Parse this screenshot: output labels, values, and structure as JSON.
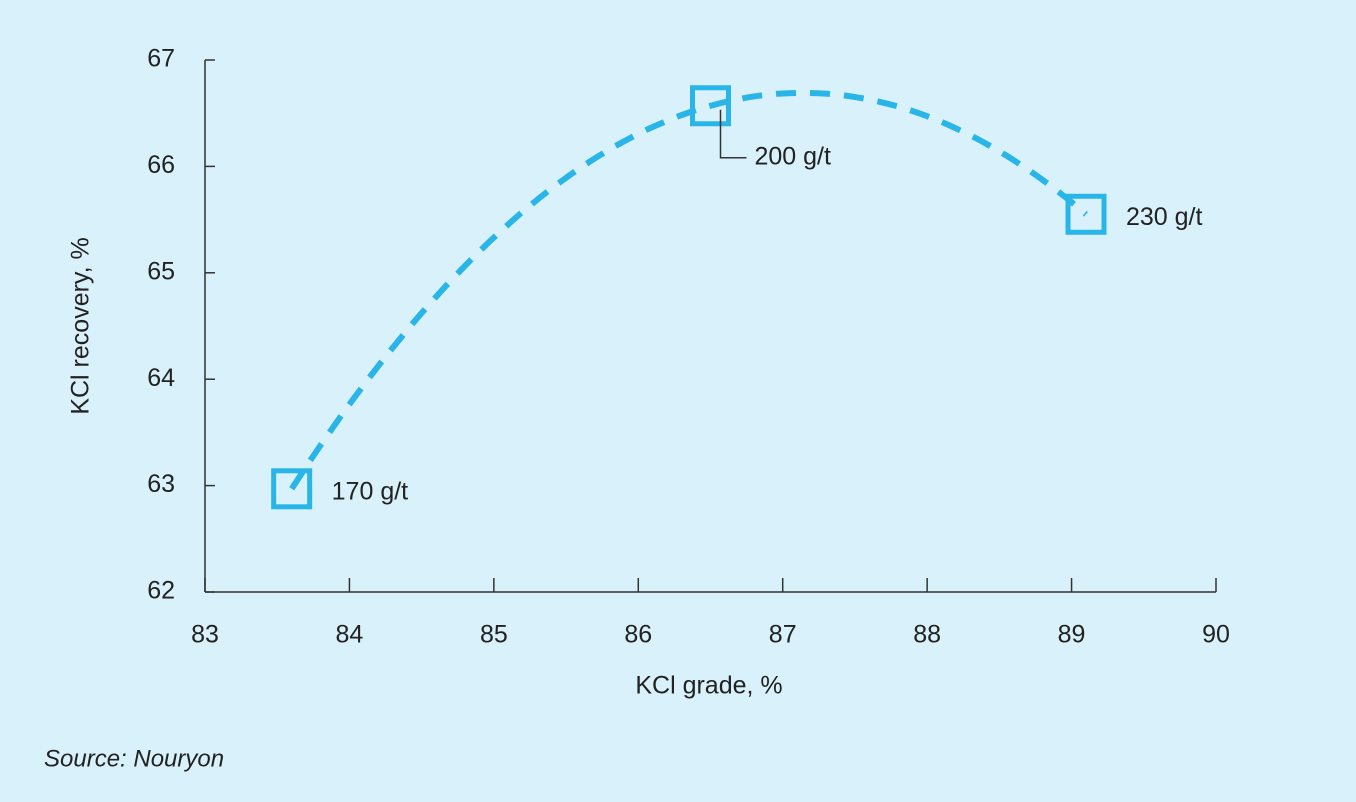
{
  "chart_data": {
    "type": "scatter",
    "x": [
      83.6,
      86.5,
      89.1
    ],
    "values": [
      62.97,
      66.57,
      65.55
    ],
    "point_labels": [
      "170 g/t",
      "200 g/t",
      "230 g/t"
    ],
    "color": "#29b5e8",
    "xlim": [
      83,
      90
    ],
    "ylim": [
      62,
      67
    ],
    "xticks": [
      83,
      84,
      85,
      86,
      87,
      88,
      89,
      90
    ],
    "yticks": [
      62,
      63,
      64,
      65,
      66,
      67
    ],
    "xlabel": "KCl grade, %",
    "ylabel": "KCl recovery, %",
    "source": "Source: Nouryon"
  }
}
